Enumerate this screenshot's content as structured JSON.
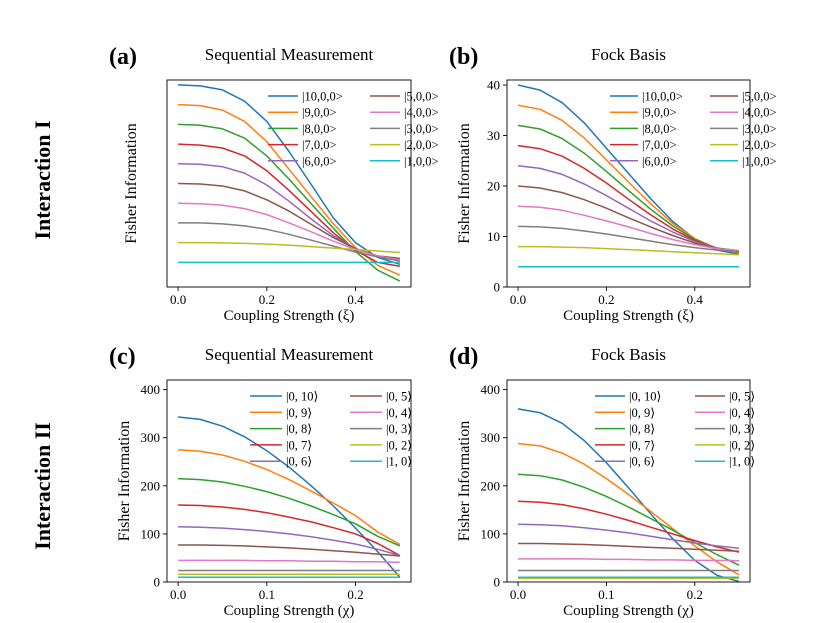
{
  "row_labels": [
    "Interaction I",
    "Interaction II"
  ],
  "chart_data": [
    {
      "type": "line",
      "panel_label": "(a)",
      "title": "Sequential Measurement",
      "xlabel": "Coupling Strength (ξ)",
      "ylabel": "Fisher Information",
      "xlim": [
        -0.025,
        0.525
      ],
      "ylim": [
        -1,
        41
      ],
      "xticks": [
        "0.0",
        "0.2",
        "0.4"
      ],
      "xtick_values": [
        0.0,
        0.2,
        0.4
      ],
      "yticks": [],
      "ytick_values": [],
      "grid": false,
      "legend_position": "top-right",
      "x": [
        0.0,
        0.05,
        0.1,
        0.15,
        0.2,
        0.25,
        0.3,
        0.35,
        0.4,
        0.45,
        0.5
      ],
      "series": [
        {
          "name": "|10,0,0>",
          "color": "#1f77b4",
          "values": [
            40,
            39.8,
            39.0,
            36.7,
            32.6,
            26.5,
            19.8,
            13.0,
            8.0,
            5.0,
            3.6
          ]
        },
        {
          "name": "|9,0,0>",
          "color": "#ff7f0e",
          "values": [
            36,
            35.8,
            34.9,
            32.6,
            28.5,
            22.9,
            17.3,
            11.8,
            7.0,
            3.4,
            1.4
          ]
        },
        {
          "name": "|8,0,0>",
          "color": "#2ca02c",
          "values": [
            32,
            31.8,
            31.1,
            29.2,
            25.6,
            20.9,
            15.9,
            10.9,
            6.2,
            2.4,
            0.2
          ]
        },
        {
          "name": "|7,0,0>",
          "color": "#d62728",
          "values": [
            28,
            27.8,
            27.2,
            25.6,
            22.6,
            18.6,
            14.3,
            10.0,
            6.4,
            4.0,
            3.2
          ]
        },
        {
          "name": "|6,0,0>",
          "color": "#9467bd",
          "values": [
            24,
            23.9,
            23.4,
            22.1,
            19.7,
            16.4,
            12.8,
            9.4,
            6.8,
            5.2,
            4.4
          ]
        },
        {
          "name": "|5,0,0>",
          "color": "#8c564b",
          "values": [
            20,
            19.9,
            19.5,
            18.5,
            16.7,
            14.4,
            11.7,
            9.0,
            6.8,
            5.3,
            4.8
          ]
        },
        {
          "name": "|4,0,0>",
          "color": "#e377c2",
          "values": [
            16,
            15.9,
            15.6,
            14.9,
            13.7,
            12.0,
            10.2,
            8.3,
            6.6,
            5.3,
            4.5
          ]
        },
        {
          "name": "|3,0,0>",
          "color": "#7f7f7f",
          "values": [
            12,
            12.0,
            11.8,
            11.4,
            10.7,
            9.7,
            8.5,
            7.3,
            6.1,
            5.1,
            4.3
          ]
        },
        {
          "name": "|2,0,0>",
          "color": "#bcbd22",
          "values": [
            8,
            8.0,
            7.95,
            7.85,
            7.7,
            7.5,
            7.2,
            6.9,
            6.6,
            6.3,
            6.0
          ]
        },
        {
          "name": "|1,0,0>",
          "color": "#17becf",
          "values": [
            4,
            4.0,
            4.0,
            4.0,
            4.0,
            4.0,
            4.0,
            4.0,
            4.0,
            4.0,
            4.0
          ]
        }
      ]
    },
    {
      "type": "line",
      "panel_label": "(b)",
      "title": "Fock Basis",
      "xlabel": "Coupling Strength (ξ)",
      "ylabel": "Fisher Information",
      "xlim": [
        -0.025,
        0.525
      ],
      "ylim": [
        0,
        41
      ],
      "xticks": [
        "0.0",
        "0.2",
        "0.4"
      ],
      "xtick_values": [
        0.0,
        0.2,
        0.4
      ],
      "yticks": [
        "0",
        "10",
        "20",
        "30",
        "40"
      ],
      "ytick_values": [
        0,
        10,
        20,
        30,
        40
      ],
      "grid": false,
      "legend_position": "top-right",
      "x": [
        0.0,
        0.05,
        0.1,
        0.15,
        0.2,
        0.25,
        0.3,
        0.35,
        0.4,
        0.45,
        0.5
      ],
      "series": [
        {
          "name": "|10,0,0>",
          "color": "#1f77b4",
          "values": [
            40,
            39.0,
            36.5,
            32.5,
            27.5,
            22.5,
            17.5,
            13.0,
            9.5,
            7.3,
            6.5
          ]
        },
        {
          "name": "|9,0,0>",
          "color": "#ff7f0e",
          "values": [
            36,
            35.2,
            33.0,
            29.5,
            25.2,
            20.8,
            16.5,
            12.6,
            9.6,
            7.6,
            6.8
          ]
        },
        {
          "name": "|8,0,0>",
          "color": "#2ca02c",
          "values": [
            32,
            31.3,
            29.4,
            26.5,
            22.9,
            19.1,
            15.4,
            12.1,
            9.4,
            7.6,
            6.9
          ]
        },
        {
          "name": "|7,0,0>",
          "color": "#d62728",
          "values": [
            28,
            27.4,
            25.9,
            23.5,
            20.6,
            17.4,
            14.3,
            11.5,
            9.2,
            7.7,
            7.0
          ]
        },
        {
          "name": "|6,0,0>",
          "color": "#9467bd",
          "values": [
            24,
            23.5,
            22.3,
            20.4,
            18.1,
            15.6,
            13.1,
            10.9,
            9.0,
            7.7,
            7.1
          ]
        },
        {
          "name": "|5,0,0>",
          "color": "#8c564b",
          "values": [
            20,
            19.6,
            18.7,
            17.3,
            15.6,
            13.7,
            11.9,
            10.2,
            8.7,
            7.7,
            7.2
          ]
        },
        {
          "name": "|4,0,0>",
          "color": "#e377c2",
          "values": [
            16,
            15.8,
            15.2,
            14.2,
            13.1,
            11.9,
            10.6,
            9.4,
            8.4,
            7.6,
            7.2
          ]
        },
        {
          "name": "|3,0,0>",
          "color": "#7f7f7f",
          "values": [
            12,
            11.9,
            11.6,
            11.1,
            10.5,
            9.8,
            9.1,
            8.4,
            7.8,
            7.3,
            7.0
          ]
        },
        {
          "name": "|2,0,0>",
          "color": "#bcbd22",
          "values": [
            8,
            8.0,
            7.9,
            7.8,
            7.6,
            7.4,
            7.2,
            7.0,
            6.8,
            6.6,
            6.4
          ]
        },
        {
          "name": "|1,0,0>",
          "color": "#17becf",
          "values": [
            4,
            4.0,
            4.0,
            4.0,
            4.0,
            4.0,
            4.0,
            4.0,
            4.0,
            4.0,
            4.0
          ]
        }
      ]
    },
    {
      "type": "line",
      "panel_label": "(c)",
      "title": "Sequential Measurement",
      "xlabel": "Coupling Strength (χ)",
      "ylabel": "Fisher Information",
      "xlim": [
        -0.0125,
        0.2625
      ],
      "ylim": [
        0,
        420
      ],
      "xticks": [
        "0.0",
        "0.1",
        "0.2"
      ],
      "xtick_values": [
        0.0,
        0.1,
        0.2
      ],
      "yticks": [
        "0",
        "100",
        "200",
        "300",
        "400"
      ],
      "ytick_values": [
        0,
        100,
        200,
        300,
        400
      ],
      "grid": false,
      "legend_position": "top-right",
      "x": [
        0.0,
        0.025,
        0.05,
        0.075,
        0.1,
        0.125,
        0.15,
        0.175,
        0.2,
        0.225,
        0.25
      ],
      "series": [
        {
          "name": "|0, 10⟩",
          "color": "#1f77b4",
          "values": [
            343,
            338,
            324,
            302,
            273,
            239,
            200,
            158,
            112,
            63,
            10
          ]
        },
        {
          "name": "|0, 9⟩",
          "color": "#ff7f0e",
          "values": [
            275,
            272,
            264,
            251,
            234,
            213,
            189,
            164,
            138,
            104,
            78
          ]
        },
        {
          "name": "|0, 8⟩",
          "color": "#2ca02c",
          "values": [
            215,
            213,
            208,
            199,
            188,
            174,
            158,
            140,
            121,
            95,
            75
          ]
        },
        {
          "name": "|0, 7⟩",
          "color": "#d62728",
          "values": [
            160,
            159,
            156,
            151,
            144,
            135,
            125,
            113,
            100,
            80,
            55
          ]
        },
        {
          "name": "|0, 6⟩",
          "color": "#9467bd",
          "values": [
            115,
            114,
            112,
            109,
            105,
            100,
            94,
            87,
            79,
            68,
            55
          ]
        },
        {
          "name": "|0, 5⟩",
          "color": "#8c564b",
          "values": [
            77,
            77,
            76,
            75,
            73,
            71,
            68,
            65,
            62,
            58,
            54
          ]
        },
        {
          "name": "|0, 4⟩",
          "color": "#e377c2",
          "values": [
            45,
            45,
            45,
            45,
            44,
            44,
            43,
            43,
            42,
            42,
            41
          ]
        },
        {
          "name": "|0, 3⟩",
          "color": "#7f7f7f",
          "values": [
            24,
            24,
            24,
            24,
            24,
            24,
            24,
            24,
            24,
            24,
            24
          ]
        },
        {
          "name": "|0, 2⟩",
          "color": "#bcbd22",
          "values": [
            16,
            16,
            16,
            16,
            16,
            16,
            16,
            16,
            16,
            16,
            16
          ]
        },
        {
          "name": "|1, 0⟩",
          "color": "#17becf",
          "values": [
            10,
            10,
            10,
            10,
            10,
            10,
            10,
            10,
            10,
            10,
            10
          ]
        }
      ]
    },
    {
      "type": "line",
      "panel_label": "(d)",
      "title": "Fock Basis",
      "xlabel": "Coupling Strength (χ)",
      "ylabel": "Fisher Information",
      "xlim": [
        -0.0125,
        0.2625
      ],
      "ylim": [
        0,
        420
      ],
      "xticks": [
        "0.0",
        "0.1",
        "0.2"
      ],
      "xtick_values": [
        0.0,
        0.1,
        0.2
      ],
      "yticks": [
        "0",
        "100",
        "200",
        "300",
        "400"
      ],
      "ytick_values": [
        0,
        100,
        200,
        300,
        400
      ],
      "grid": false,
      "legend_position": "top-right",
      "x": [
        0.0,
        0.025,
        0.05,
        0.075,
        0.1,
        0.125,
        0.15,
        0.175,
        0.2,
        0.225,
        0.25
      ],
      "series": [
        {
          "name": "|0, 10⟩",
          "color": "#1f77b4",
          "values": [
            360,
            352,
            330,
            294,
            248,
            196,
            142,
            90,
            45,
            14,
            1
          ]
        },
        {
          "name": "|0, 9⟩",
          "color": "#ff7f0e",
          "values": [
            288,
            283,
            268,
            245,
            215,
            182,
            147,
            111,
            75,
            42,
            15
          ]
        },
        {
          "name": "|0, 8⟩",
          "color": "#2ca02c",
          "values": [
            224,
            221,
            212,
            197,
            178,
            156,
            132,
            108,
            82,
            57,
            35
          ]
        },
        {
          "name": "|0, 7⟩",
          "color": "#d62728",
          "values": [
            168,
            166,
            161,
            152,
            141,
            128,
            114,
            100,
            86,
            73,
            62
          ]
        },
        {
          "name": "|0, 6⟩",
          "color": "#9467bd",
          "values": [
            120,
            119,
            117,
            113,
            108,
            102,
            95,
            88,
            81,
            75,
            70
          ]
        },
        {
          "name": "|0, 5⟩",
          "color": "#8c564b",
          "values": [
            80,
            80,
            79,
            78,
            76,
            74,
            72,
            70,
            68,
            66,
            64
          ]
        },
        {
          "name": "|0, 4⟩",
          "color": "#e377c2",
          "values": [
            48,
            48,
            48,
            48,
            47,
            47,
            46,
            46,
            45,
            45,
            44
          ]
        },
        {
          "name": "|0, 3⟩",
          "color": "#7f7f7f",
          "values": [
            24,
            24,
            24,
            24,
            24,
            24,
            24,
            24,
            24,
            24,
            24
          ]
        },
        {
          "name": "|0, 2⟩",
          "color": "#bcbd22",
          "values": [
            8,
            8,
            8,
            8,
            8,
            8,
            8,
            8,
            8,
            8,
            8
          ]
        },
        {
          "name": "|1, 0⟩",
          "color": "#17becf",
          "values": [
            10,
            10,
            10,
            10,
            10,
            10,
            10,
            10,
            10,
            10,
            10
          ]
        }
      ]
    }
  ]
}
